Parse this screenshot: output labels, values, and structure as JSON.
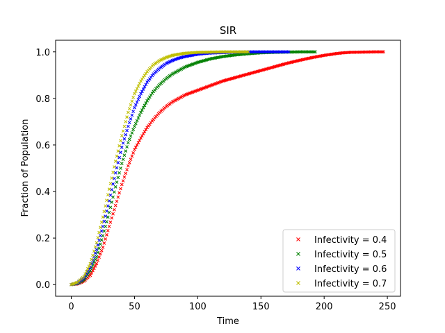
{
  "chart_data": {
    "type": "scatter",
    "title": "SIR",
    "xlabel": "Time",
    "ylabel": "Fraction of Population",
    "xlim": [
      -12.4,
      260.4
    ],
    "ylim": [
      -0.05,
      1.05
    ],
    "xticks": [
      0,
      50,
      100,
      150,
      200,
      250
    ],
    "yticks": [
      0.0,
      0.2,
      0.4,
      0.6,
      0.8,
      1.0
    ],
    "xtick_labels": [
      "0",
      "50",
      "100",
      "150",
      "200",
      "250"
    ],
    "ytick_labels": [
      "0.0",
      "0.2",
      "0.4",
      "0.6",
      "0.8",
      "1.0"
    ],
    "grid": false,
    "legend_position": "lower right",
    "marker": "x",
    "series": [
      {
        "name": "Infectivity = 0.4",
        "color": "#ff0000",
        "x": [
          0,
          5,
          10,
          15,
          20,
          25,
          30,
          35,
          40,
          45,
          50,
          55,
          60,
          65,
          70,
          75,
          80,
          85,
          90,
          95,
          100,
          110,
          120,
          130,
          140,
          150,
          160,
          170,
          180,
          190,
          200,
          210,
          215,
          220,
          230,
          240,
          247
        ],
        "values": [
          0.0,
          0.003,
          0.015,
          0.04,
          0.09,
          0.16,
          0.25,
          0.34,
          0.43,
          0.51,
          0.58,
          0.63,
          0.675,
          0.71,
          0.74,
          0.765,
          0.785,
          0.8,
          0.815,
          0.825,
          0.835,
          0.855,
          0.875,
          0.89,
          0.905,
          0.92,
          0.935,
          0.95,
          0.963,
          0.975,
          0.985,
          0.993,
          0.996,
          0.998,
          0.999,
          1.0,
          1.0
        ]
      },
      {
        "name": "Infectivity = 0.5",
        "color": "#008000",
        "x": [
          0,
          5,
          10,
          15,
          20,
          25,
          30,
          35,
          40,
          45,
          50,
          55,
          60,
          65,
          70,
          75,
          80,
          85,
          90,
          95,
          100,
          110,
          120,
          130,
          140,
          150,
          160,
          170,
          180,
          193
        ],
        "values": [
          0.0,
          0.005,
          0.02,
          0.06,
          0.12,
          0.21,
          0.31,
          0.42,
          0.52,
          0.61,
          0.68,
          0.74,
          0.79,
          0.83,
          0.86,
          0.885,
          0.905,
          0.92,
          0.935,
          0.945,
          0.955,
          0.97,
          0.98,
          0.987,
          0.992,
          0.996,
          0.998,
          0.999,
          1.0,
          1.0
        ]
      },
      {
        "name": "Infectivity = 0.6",
        "color": "#0000ff",
        "x": [
          0,
          5,
          10,
          15,
          20,
          25,
          30,
          35,
          40,
          45,
          50,
          55,
          60,
          65,
          70,
          75,
          80,
          85,
          90,
          95,
          100,
          110,
          120,
          130,
          140,
          150,
          160,
          172
        ],
        "values": [
          0.0,
          0.007,
          0.028,
          0.075,
          0.15,
          0.25,
          0.36,
          0.48,
          0.59,
          0.68,
          0.76,
          0.82,
          0.87,
          0.905,
          0.93,
          0.95,
          0.963,
          0.973,
          0.98,
          0.985,
          0.99,
          0.995,
          0.997,
          0.999,
          1.0,
          1.0,
          1.0,
          1.0
        ]
      },
      {
        "name": "Infectivity = 0.7",
        "color": "#bfbf00",
        "x": [
          0,
          5,
          10,
          15,
          20,
          25,
          30,
          35,
          40,
          45,
          50,
          55,
          60,
          65,
          70,
          75,
          80,
          85,
          90,
          95,
          100,
          110,
          120,
          130,
          140
        ],
        "values": [
          0.0,
          0.01,
          0.035,
          0.09,
          0.18,
          0.29,
          0.41,
          0.53,
          0.64,
          0.74,
          0.82,
          0.875,
          0.915,
          0.945,
          0.963,
          0.976,
          0.985,
          0.99,
          0.994,
          0.996,
          0.998,
          0.999,
          1.0,
          1.0,
          1.0
        ]
      }
    ]
  }
}
